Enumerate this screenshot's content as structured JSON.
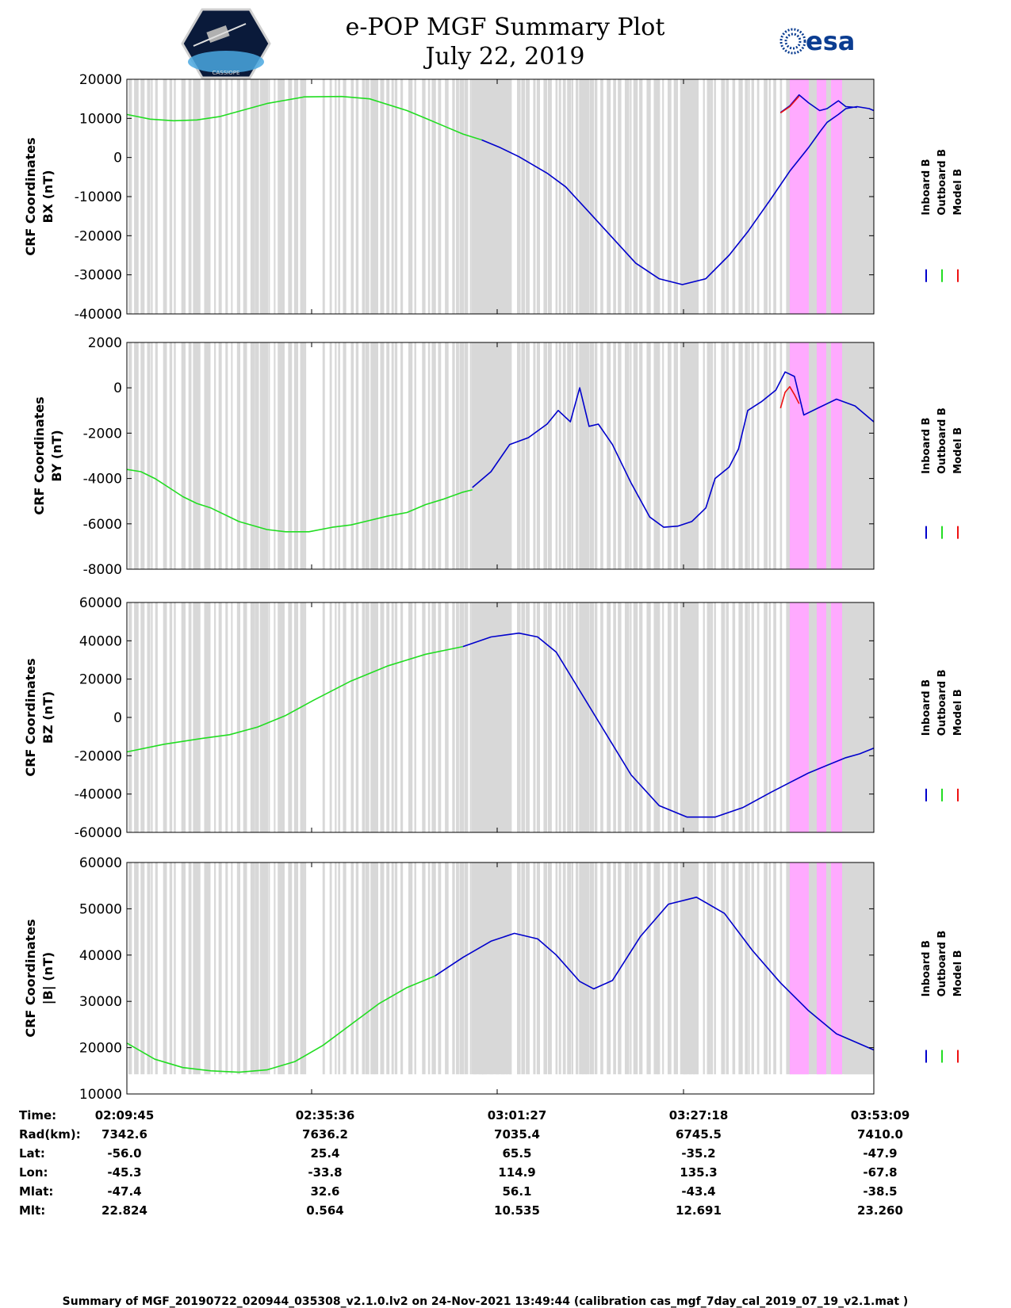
{
  "header": {
    "title": "e-POP MGF Summary Plot",
    "date": "July 22, 2019",
    "left_logo": "epop-cassiope-satellite-logo",
    "right_logo": "esa-logo",
    "right_logo_text": "esa"
  },
  "colors": {
    "inboard": "#0000cc",
    "outboard": "#22dd22",
    "model": "#ee1111",
    "grey_band": "#d8d8d8",
    "pink_band": "#ffaaff"
  },
  "legend": {
    "inboard": "Inboard B",
    "outboard": "Outboard B",
    "model": "Model B"
  },
  "chart_data": [
    {
      "type": "line",
      "id": "bx",
      "ylabel_line1": "CRF Coordinates",
      "ylabel_line2": "BX (nT)",
      "ylim": [
        -40000,
        20000
      ],
      "yticks": [
        -40000,
        -30000,
        -20000,
        -10000,
        0,
        10000,
        20000
      ],
      "ytick_labels": [
        "-40000",
        "-30000",
        "-20000",
        "-10000",
        "0",
        "10000",
        "20000"
      ],
      "xlim": [
        0,
        8
      ],
      "series": [
        {
          "name": "Outboard B",
          "color": "outboard",
          "x": [
            0,
            0.25,
            0.5,
            0.75,
            1.0,
            1.5,
            1.9,
            2.3,
            2.6,
            3.0,
            3.2,
            3.4,
            3.6,
            3.8
          ],
          "y": [
            11000,
            9800,
            9400,
            9600,
            10500,
            13800,
            15500,
            15600,
            15000,
            12000,
            10000,
            8000,
            6000,
            4500
          ]
        },
        {
          "name": "Inboard B",
          "color": "inboard",
          "x": [
            3.8,
            4.0,
            4.2,
            4.5,
            4.7,
            4.95,
            5.2,
            5.45,
            5.7,
            5.95,
            6.2,
            6.45,
            6.65,
            6.9,
            7.1,
            7.3,
            7.42,
            7.5,
            7.62,
            7.7,
            7.82,
            7.95,
            8.0
          ],
          "y": [
            4500,
            2500,
            200,
            -4000,
            -7500,
            -14000,
            -20500,
            -27000,
            -31000,
            -32500,
            -31000,
            -25000,
            -19000,
            -10500,
            -3500,
            2500,
            6500,
            9000,
            11000,
            12500,
            13000,
            12500,
            12000
          ]
        },
        {
          "name": "Inboard B (pink interval)",
          "color": "inboard",
          "x": [
            7.0,
            7.1,
            7.2,
            7.3,
            7.42,
            7.5,
            7.62,
            7.7,
            7.82
          ],
          "y": [
            11500,
            13200,
            16000,
            14000,
            12000,
            12500,
            14500,
            13000,
            12800
          ]
        },
        {
          "name": "Model B",
          "color": "model",
          "x": [
            7.0,
            7.1,
            7.2
          ],
          "y": [
            11400,
            13000,
            15700
          ]
        }
      ]
    },
    {
      "type": "line",
      "id": "by",
      "ylabel_line1": "CRF Coordinates",
      "ylabel_line2": "BY (nT)",
      "ylim": [
        -8000,
        2000
      ],
      "yticks": [
        -8000,
        -6000,
        -4000,
        -2000,
        0,
        2000
      ],
      "ytick_labels": [
        "-8000",
        "-6000",
        "-4000",
        "-2000",
        "0",
        "2000"
      ],
      "xlim": [
        0,
        8
      ],
      "series": [
        {
          "name": "Outboard B",
          "color": "outboard",
          "x": [
            0,
            0.15,
            0.3,
            0.45,
            0.6,
            0.75,
            0.9,
            1.2,
            1.5,
            1.7,
            1.95,
            2.2,
            2.4,
            2.6,
            2.8,
            3.0,
            3.2,
            3.4,
            3.5,
            3.6,
            3.7
          ],
          "y": [
            -3600,
            -3700,
            -4000,
            -4400,
            -4800,
            -5100,
            -5300,
            -5900,
            -6250,
            -6350,
            -6350,
            -6150,
            -6050,
            -5850,
            -5650,
            -5500,
            -5150,
            -4900,
            -4750,
            -4600,
            -4500
          ]
        },
        {
          "name": "Inboard B",
          "color": "inboard",
          "x": [
            3.7,
            3.9,
            4.1,
            4.3,
            4.5,
            4.62,
            4.75,
            4.85,
            4.95,
            5.05,
            5.2,
            5.4,
            5.6,
            5.75,
            5.9,
            6.05,
            6.2,
            6.3,
            6.45,
            6.55,
            6.65,
            6.8,
            6.95,
            7.05,
            7.15,
            7.25,
            7.4,
            7.6,
            7.8,
            8.0
          ],
          "y": [
            -4400,
            -3700,
            -2500,
            -2200,
            -1600,
            -1000,
            -1500,
            0,
            -1700,
            -1600,
            -2500,
            -4200,
            -5700,
            -6150,
            -6100,
            -5900,
            -5300,
            -4000,
            -3500,
            -2700,
            -1000,
            -600,
            -100,
            700,
            500,
            -1200,
            -900,
            -500,
            -800,
            -1500
          ]
        },
        {
          "name": "Model B",
          "color": "model",
          "x": [
            7.0,
            7.05,
            7.1,
            7.15,
            7.2
          ],
          "y": [
            -900,
            -200,
            50,
            -300,
            -700
          ]
        }
      ]
    },
    {
      "type": "line",
      "id": "bz",
      "ylabel_line1": "CRF Coordinates",
      "ylabel_line2": "BZ (nT)",
      "ylim": [
        -60000,
        60000
      ],
      "yticks": [
        -60000,
        -40000,
        -20000,
        0,
        20000,
        40000,
        60000
      ],
      "ytick_labels": [
        "-60000",
        "-40000",
        "-20000",
        "0",
        "20000",
        "40000",
        "60000"
      ],
      "xlim": [
        0,
        8
      ],
      "series": [
        {
          "name": "Outboard B",
          "color": "outboard",
          "x": [
            0,
            0.4,
            0.8,
            1.1,
            1.4,
            1.7,
            2.0,
            2.4,
            2.8,
            3.2,
            3.6
          ],
          "y": [
            -18000,
            -14000,
            -11000,
            -9000,
            -5000,
            1000,
            9000,
            19000,
            27000,
            33000,
            37000
          ]
        },
        {
          "name": "Inboard B",
          "color": "inboard",
          "x": [
            3.6,
            3.9,
            4.2,
            4.4,
            4.6,
            4.8,
            5.1,
            5.4,
            5.7,
            6.0,
            6.3,
            6.6,
            6.9,
            7.1,
            7.3,
            7.5,
            7.7,
            7.85,
            8.0
          ],
          "y": [
            37000,
            42000,
            44000,
            42000,
            34000,
            18000,
            -6000,
            -30000,
            -46000,
            -52000,
            -52000,
            -47000,
            -39000,
            -34000,
            -29000,
            -25000,
            -21000,
            -19000,
            -16000
          ]
        }
      ]
    },
    {
      "type": "line",
      "id": "bmag",
      "ylabel_line1": "CRF Coordinates",
      "ylabel_line2": "|B| (nT)",
      "ylim": [
        10000,
        60000
      ],
      "yticks": [
        10000,
        20000,
        30000,
        40000,
        50000,
        60000
      ],
      "ytick_labels": [
        "10000",
        "20000",
        "30000",
        "40000",
        "50000",
        "60000"
      ],
      "xlim": [
        0,
        8
      ],
      "series": [
        {
          "name": "Outboard B",
          "color": "outboard",
          "x": [
            0,
            0.3,
            0.6,
            0.9,
            1.2,
            1.5,
            1.8,
            2.1,
            2.4,
            2.7,
            3.0,
            3.3
          ],
          "y": [
            21000,
            17500,
            15700,
            15000,
            14700,
            15200,
            17000,
            20500,
            25000,
            29500,
            33000,
            35500
          ]
        },
        {
          "name": "Inboard B",
          "color": "inboard",
          "x": [
            3.3,
            3.6,
            3.9,
            4.15,
            4.4,
            4.6,
            4.85,
            5.0,
            5.2,
            5.5,
            5.8,
            6.1,
            6.4,
            6.7,
            7.0,
            7.3,
            7.6,
            8.0
          ],
          "y": [
            35500,
            39500,
            43000,
            44700,
            43500,
            40000,
            34300,
            32700,
            34500,
            44000,
            51000,
            52500,
            49000,
            41000,
            34000,
            28000,
            23000,
            19500
          ]
        }
      ]
    }
  ],
  "xaxis_table": {
    "row_labels": [
      "Time:",
      "Rad(km):",
      "Lat:",
      "Lon:",
      "Mlat:",
      "Mlt:"
    ],
    "columns": [
      [
        "02:09:45",
        "7342.6",
        "-56.0",
        "-45.3",
        "-47.4",
        "22.824"
      ],
      [
        "02:35:36",
        "7636.2",
        "25.4",
        "-33.8",
        "32.6",
        "0.564"
      ],
      [
        "03:01:27",
        "7035.4",
        "65.5",
        "114.9",
        "56.1",
        "10.535"
      ],
      [
        "03:27:18",
        "6745.5",
        "-35.2",
        "135.3",
        "-43.4",
        "12.691"
      ],
      [
        "03:53:09",
        "7410.0",
        "-47.9",
        "-67.8",
        "-38.5",
        "23.260"
      ]
    ]
  },
  "footer": {
    "text": "Summary of MGF_20190722_020944_035308_v2.1.0.lv2 on 24-Nov-2021 13:49:44 (calibration cas_mgf_7day_cal_2019_07_19_v2.1.mat )"
  }
}
